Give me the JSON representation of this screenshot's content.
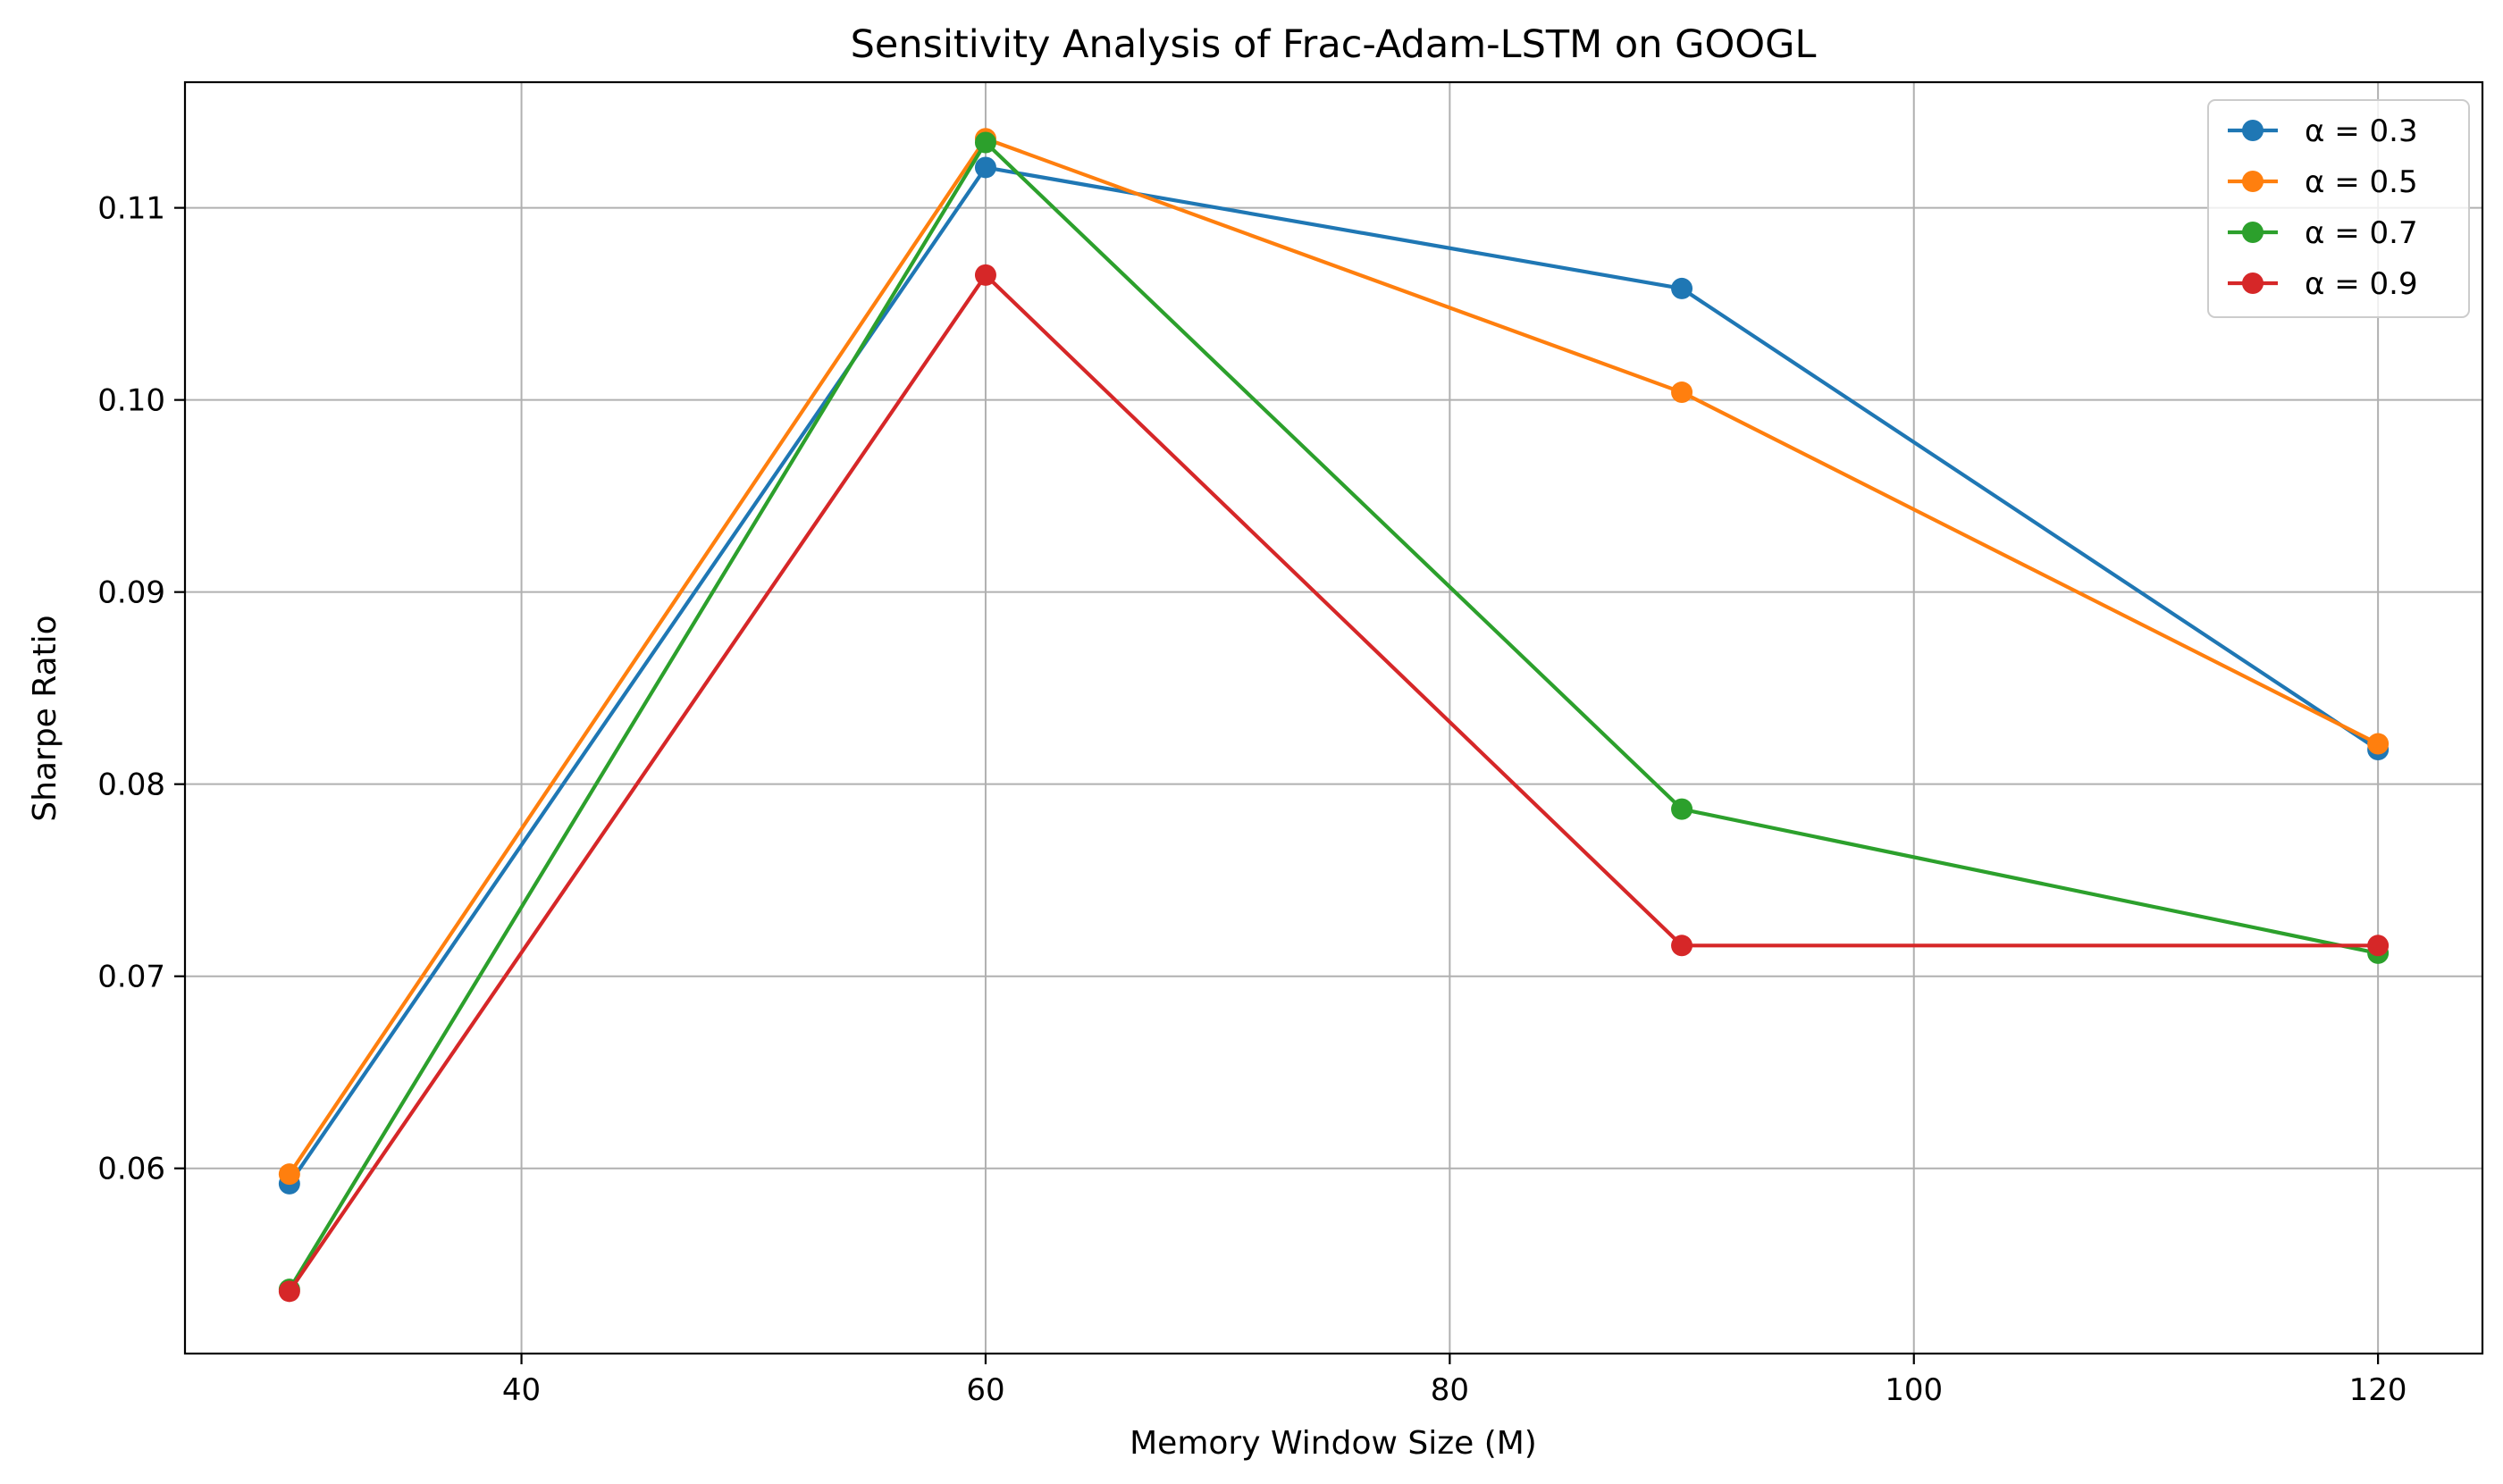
{
  "chart_data": {
    "type": "line",
    "title": "Sensitivity Analysis of Frac-Adam-LSTM on GOOGL",
    "xlabel": "Memory Window Size (M)",
    "ylabel": "Sharpe Ratio",
    "x": [
      30,
      60,
      90,
      120
    ],
    "xlim": [
      25.5,
      124.5
    ],
    "ylim": [
      0.05036,
      0.11654
    ],
    "xticks": [
      40,
      60,
      80,
      100,
      120
    ],
    "xtick_labels": [
      "40",
      "60",
      "80",
      "100",
      "120"
    ],
    "yticks": [
      0.06,
      0.07,
      0.08,
      0.09,
      0.1,
      0.11
    ],
    "ytick_labels": [
      "0.06",
      "0.07",
      "0.08",
      "0.09",
      "0.10",
      "0.11"
    ],
    "grid": true,
    "legend_position": "top-right",
    "series": [
      {
        "name": "α = 0.3",
        "color": "#1f77b4",
        "values": [
          0.0592,
          0.1121,
          0.1058,
          0.0818
        ]
      },
      {
        "name": "α = 0.5",
        "color": "#ff7f0e",
        "values": [
          0.0597,
          0.1136,
          0.1004,
          0.0821
        ]
      },
      {
        "name": "α = 0.7",
        "color": "#2ca02c",
        "values": [
          0.0537,
          0.1134,
          0.0787,
          0.0712
        ]
      },
      {
        "name": "α = 0.9",
        "color": "#d62728",
        "values": [
          0.0536,
          0.1065,
          0.0716,
          0.0716
        ]
      }
    ]
  }
}
